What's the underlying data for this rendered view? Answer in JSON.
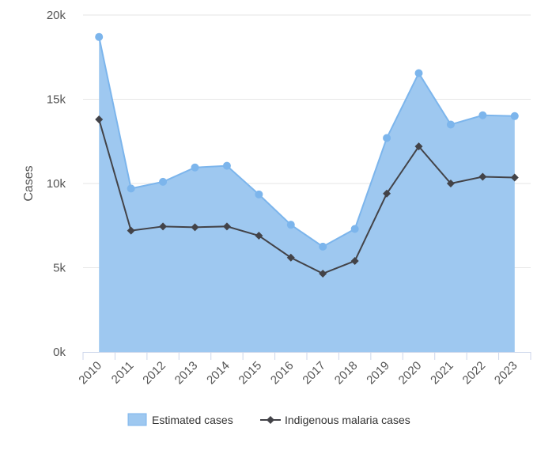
{
  "chart_data": {
    "type": "area",
    "categories": [
      "2010",
      "2011",
      "2012",
      "2013",
      "2014",
      "2015",
      "2016",
      "2017",
      "2018",
      "2019",
      "2020",
      "2021",
      "2022",
      "2023"
    ],
    "series": [
      {
        "name": "Estimated cases",
        "type": "area",
        "color": "#7cb5ec",
        "fill_color": "#9ec8f0",
        "marker": "circle",
        "values": [
          18700,
          9700,
          10100,
          10950,
          11050,
          9350,
          7550,
          6250,
          7300,
          12700,
          16550,
          13500,
          14050,
          14000
        ]
      },
      {
        "name": "Indigenous malaria cases",
        "type": "line",
        "color": "#434348",
        "marker": "diamond",
        "values": [
          13800,
          7200,
          7450,
          7400,
          7450,
          6900,
          5600,
          4650,
          5400,
          9400,
          12200,
          10000,
          10400,
          10350
        ]
      }
    ],
    "xlabel": "",
    "ylabel": "Cases",
    "ylim": [
      0,
      20000
    ],
    "yticks": [
      {
        "value": 0,
        "label": "0k"
      },
      {
        "value": 5000,
        "label": "5k"
      },
      {
        "value": 10000,
        "label": "10k"
      },
      {
        "value": 15000,
        "label": "15k"
      },
      {
        "value": 20000,
        "label": "20k"
      }
    ],
    "grid": true,
    "legend_position": "bottom-center",
    "gridline_color": "#e6e6e6",
    "axis_color": "#ccd6eb"
  }
}
